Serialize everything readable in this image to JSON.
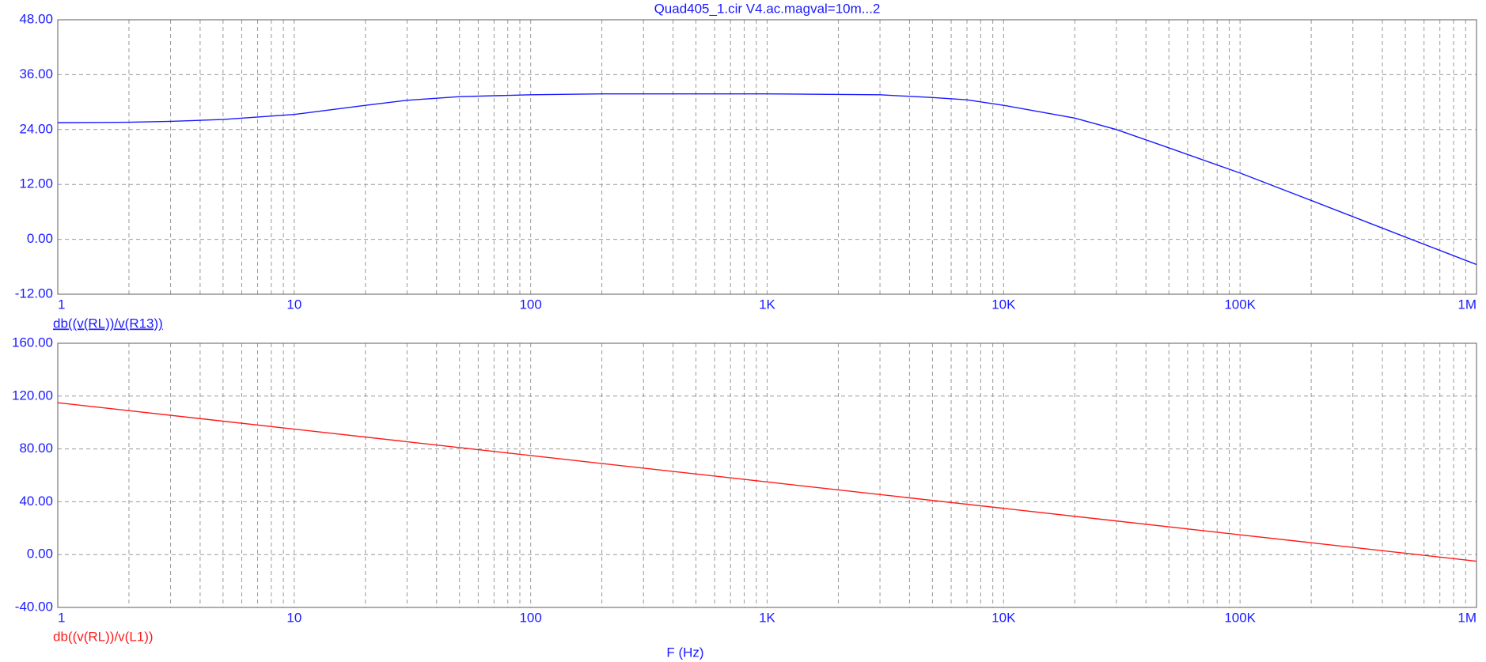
{
  "chart_data": [
    {
      "type": "line",
      "title": "Quad405_1.cir V4.ac.magval=10m...2",
      "xscale": "log",
      "grid": true,
      "x": [
        1,
        2,
        3,
        5,
        10,
        20,
        30,
        50,
        100,
        200,
        1000,
        3000,
        5000,
        7000,
        10000,
        20000,
        30000,
        50000,
        100000,
        200000,
        500000,
        1000000
      ],
      "series": [
        {
          "name": "db((v(RL))/v(R13))",
          "color": "#1a1aff",
          "values": [
            25.5,
            25.6,
            25.8,
            26.2,
            27.3,
            29.3,
            30.4,
            31.2,
            31.6,
            31.8,
            31.8,
            31.6,
            31.0,
            30.5,
            29.3,
            26.5,
            24.0,
            20.0,
            14.5,
            8.5,
            0.5,
            -5.5
          ]
        }
      ],
      "xlim": [
        1,
        1000000
      ],
      "xticks": [
        1,
        10,
        100,
        {
          "value": 1000,
          "label": "1K"
        },
        {
          "value": 10000,
          "label": "10K"
        },
        {
          "value": 100000,
          "label": "100K"
        },
        {
          "value": 1000000,
          "label": "1M"
        }
      ],
      "ylim": [
        -12,
        48
      ],
      "yticks": [
        {
          "value": -12,
          "label": "-12.00"
        },
        {
          "value": 0,
          "label": "0.00"
        },
        {
          "value": 12,
          "label": "12.00"
        },
        {
          "value": 24,
          "label": "24.00"
        },
        {
          "value": 36,
          "label": "36.00"
        },
        {
          "value": 48,
          "label": "48.00"
        }
      ]
    },
    {
      "type": "line",
      "xlabel": "F (Hz)",
      "xscale": "log",
      "grid": true,
      "x": [
        1,
        10,
        100,
        1000,
        10000,
        100000,
        1000000
      ],
      "series": [
        {
          "name": "db((v(RL))/v(L1))",
          "color": "#ff1a1a",
          "values": [
            115,
            95,
            75,
            55,
            35,
            15,
            -5
          ]
        }
      ],
      "xlim": [
        1,
        1000000
      ],
      "xticks": [
        1,
        10,
        100,
        {
          "value": 1000,
          "label": "1K"
        },
        {
          "value": 10000,
          "label": "10K"
        },
        {
          "value": 100000,
          "label": "100K"
        },
        {
          "value": 1000000,
          "label": "1M"
        }
      ],
      "ylim": [
        -40,
        160
      ],
      "yticks": [
        {
          "value": -40,
          "label": "-40.00"
        },
        {
          "value": 0,
          "label": "0.00"
        },
        {
          "value": 40,
          "label": "40.00"
        },
        {
          "value": 80,
          "label": "80.00"
        },
        {
          "value": 120,
          "label": "120.00"
        },
        {
          "value": 160,
          "label": "160.00"
        }
      ]
    }
  ]
}
